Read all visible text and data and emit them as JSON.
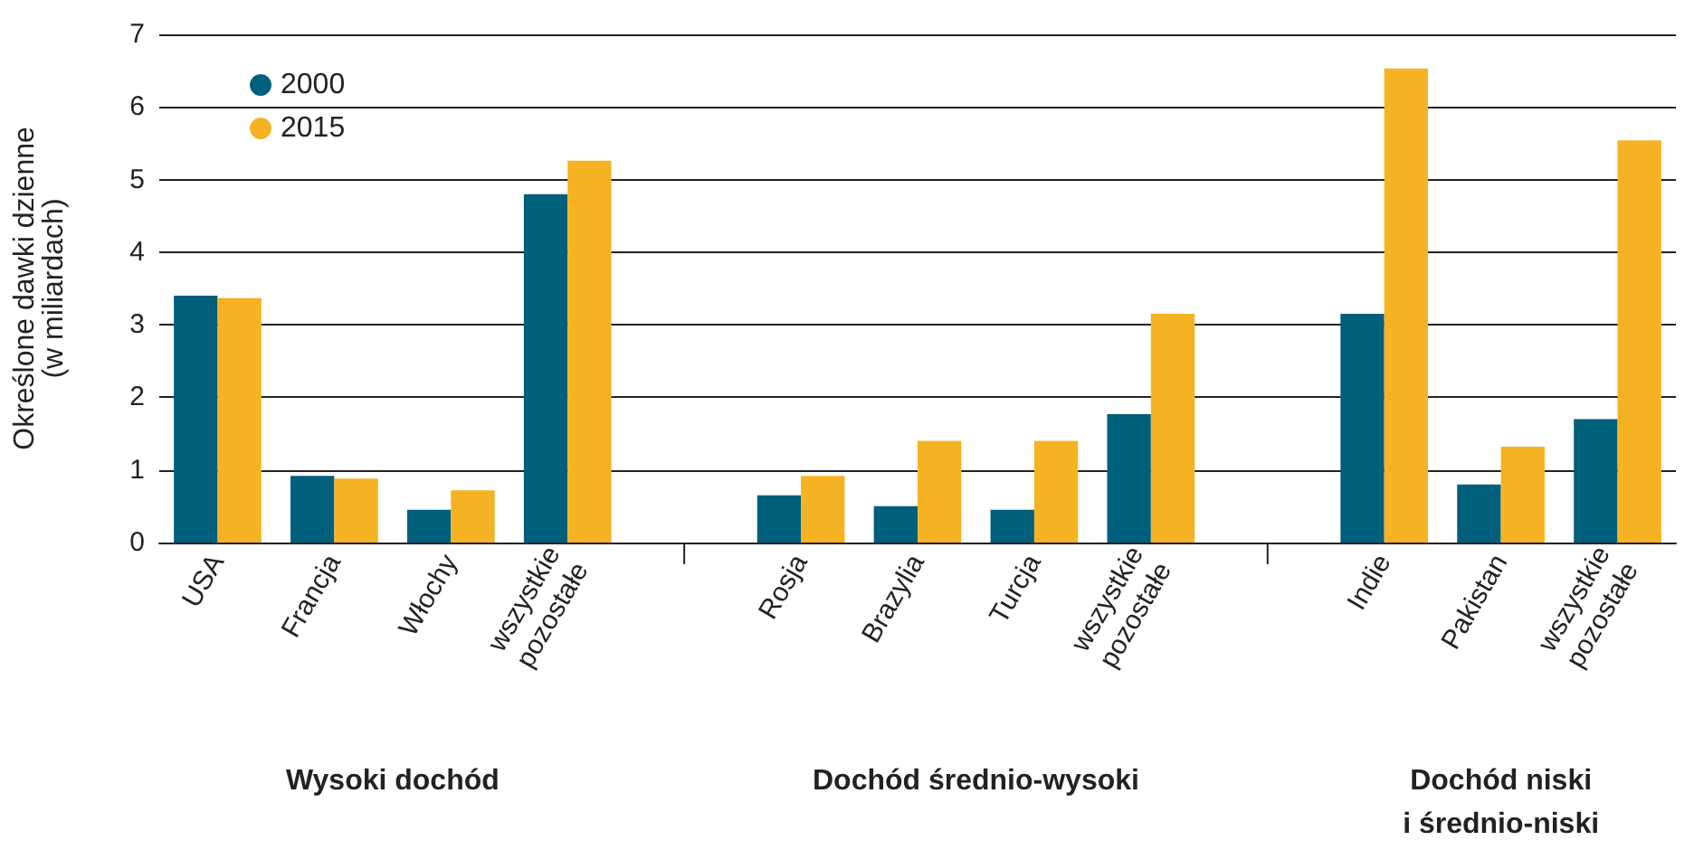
{
  "chart_data": {
    "type": "bar",
    "ylabel": "Określone dawki dzienne\n(w miliardach)",
    "categories": [
      "USA",
      "Francja",
      "Włochy",
      "wszystkie pozostałe",
      null,
      "Rosja",
      "Brazylia",
      "Turcja",
      "wszystkie pozostałe",
      null,
      "Indie",
      "Pakistan",
      "wszystkie pozostałe"
    ],
    "series": [
      {
        "name": "2000",
        "color": "#005f7a",
        "values": [
          3.4,
          0.92,
          0.45,
          4.8,
          null,
          0.65,
          0.5,
          0.45,
          1.77,
          null,
          3.15,
          0.8,
          1.7
        ]
      },
      {
        "name": "2015",
        "color": "#f5b323",
        "values": [
          3.37,
          0.88,
          0.72,
          5.26,
          null,
          0.92,
          1.4,
          1.4,
          3.15,
          null,
          6.53,
          1.32,
          5.54
        ]
      }
    ],
    "ylim": [
      0,
      7
    ],
    "yticks": [
      0,
      1,
      2,
      3,
      4,
      5,
      6,
      7
    ],
    "grid": "y",
    "legend": "top left",
    "annotations": [
      "Wysoki dochód",
      "Dochód średnio-wysoki",
      "Dochód niski\ni średnio-niski"
    ]
  }
}
